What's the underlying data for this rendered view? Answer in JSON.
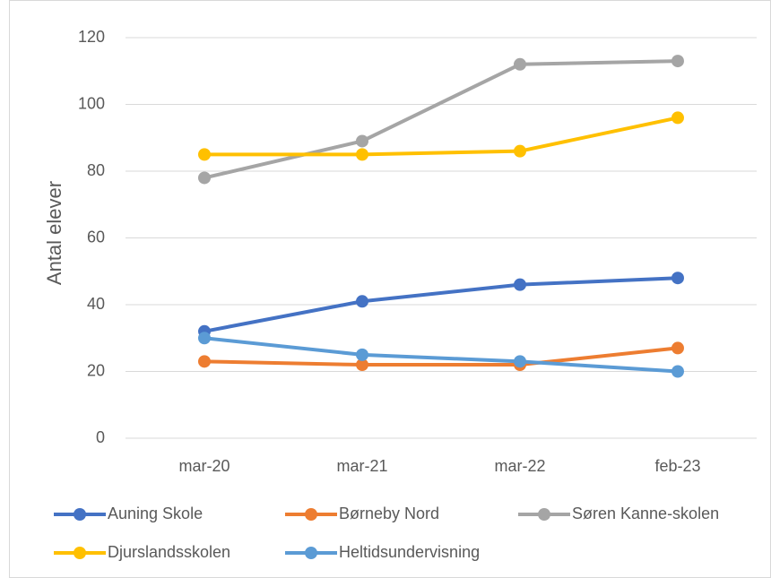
{
  "chart_data": {
    "type": "line",
    "ylabel": "Antal elever",
    "categories": [
      "mar-20",
      "mar-21",
      "mar-22",
      "feb-23"
    ],
    "series": [
      {
        "name": "Auning Skole",
        "color": "#4472c4",
        "values": [
          32,
          41,
          46,
          48
        ]
      },
      {
        "name": "Børneby Nord",
        "color": "#ed7d31",
        "values": [
          23,
          22,
          22,
          27
        ]
      },
      {
        "name": "Søren Kanne-skolen",
        "color": "#a5a5a5",
        "values": [
          78,
          89,
          112,
          113
        ]
      },
      {
        "name": "Djurslandsskolen",
        "color": "#ffc000",
        "values": [
          85,
          85,
          86,
          96
        ]
      },
      {
        "name": "Heltidsundervisning",
        "color": "#5b9bd5",
        "values": [
          30,
          25,
          23,
          20
        ]
      }
    ],
    "ylim": [
      0,
      120
    ],
    "yticks": [
      0,
      20,
      40,
      60,
      80,
      100,
      120
    ],
    "grid": true,
    "legend": "bottom"
  }
}
